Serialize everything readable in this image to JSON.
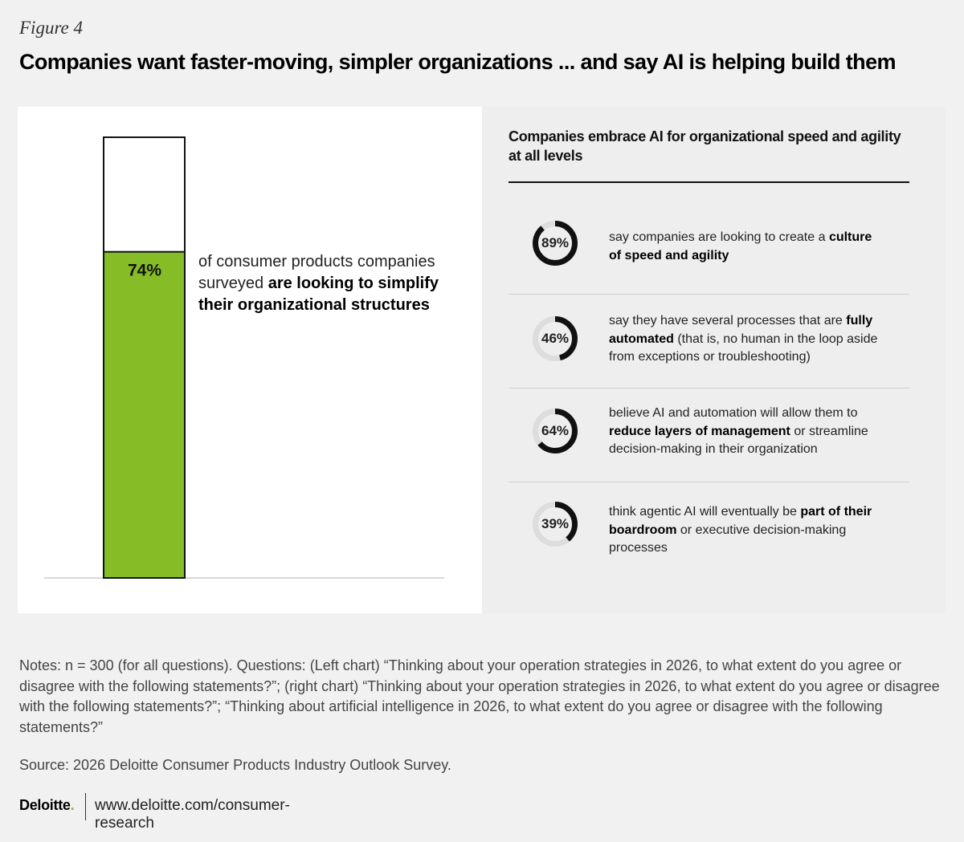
{
  "figure_label": "Figure 4",
  "title": "Companies want faster-moving, simpler organizations ... and say AI is helping build them",
  "colors": {
    "bar_fill": "#86bc25",
    "bar_outline": "#111111",
    "donut_active": "#111111",
    "donut_track": "#dddddd",
    "brand_dot": "#86bc25"
  },
  "chart_data": [
    {
      "type": "bar",
      "categories": [
        "simplify organizational structures"
      ],
      "values": [
        74
      ],
      "ylim": [
        0,
        100
      ],
      "value_label": "74%",
      "description": {
        "pre": "of consumer products companies surveyed ",
        "bold": "are looking to simplify their organizational structures"
      }
    },
    {
      "type": "pie",
      "title": "Companies embrace AI for organizational speed and agility at all levels",
      "items": [
        {
          "value": 89,
          "label": "89%",
          "parts": [
            {
              "text": "say companies are looking to create a ",
              "bold": false
            },
            {
              "text": "culture of speed and agility",
              "bold": true
            }
          ]
        },
        {
          "value": 46,
          "label": "46%",
          "parts": [
            {
              "text": "say they have several processes that are ",
              "bold": false
            },
            {
              "text": "fully automated",
              "bold": true
            },
            {
              "text": " (that is, no human in the loop aside from exceptions or troubleshooting)",
              "bold": false
            }
          ]
        },
        {
          "value": 64,
          "label": "64%",
          "parts": [
            {
              "text": "believe AI and automation will allow them to ",
              "bold": false
            },
            {
              "text": "reduce layers of management",
              "bold": true
            },
            {
              "text": " or streamline decision-making in their organization",
              "bold": false
            }
          ]
        },
        {
          "value": 39,
          "label": "39%",
          "parts": [
            {
              "text": "think agentic AI will eventually be ",
              "bold": false
            },
            {
              "text": "part of their boardroom",
              "bold": true
            },
            {
              "text": " or executive decision-making processes",
              "bold": false
            }
          ]
        }
      ]
    }
  ],
  "notes": "Notes: n = 300 (for all questions). Questions: (Left chart) “Thinking about your operation strategies in 2026, to what extent do you agree or disagree with the following statements?”; (right chart) “Thinking about your operation strategies in 2026, to what extent do you agree or disagree with the following statements?”; “Thinking about artificial intelligence in 2026, to what extent do you agree or disagree with the following statements?”",
  "source": "Source: 2026 Deloitte Consumer Products Industry Outlook Survey.",
  "footer": {
    "brand": "Deloitte",
    "brand_dot": ".",
    "url": "www.deloitte.com/consumer-research"
  }
}
